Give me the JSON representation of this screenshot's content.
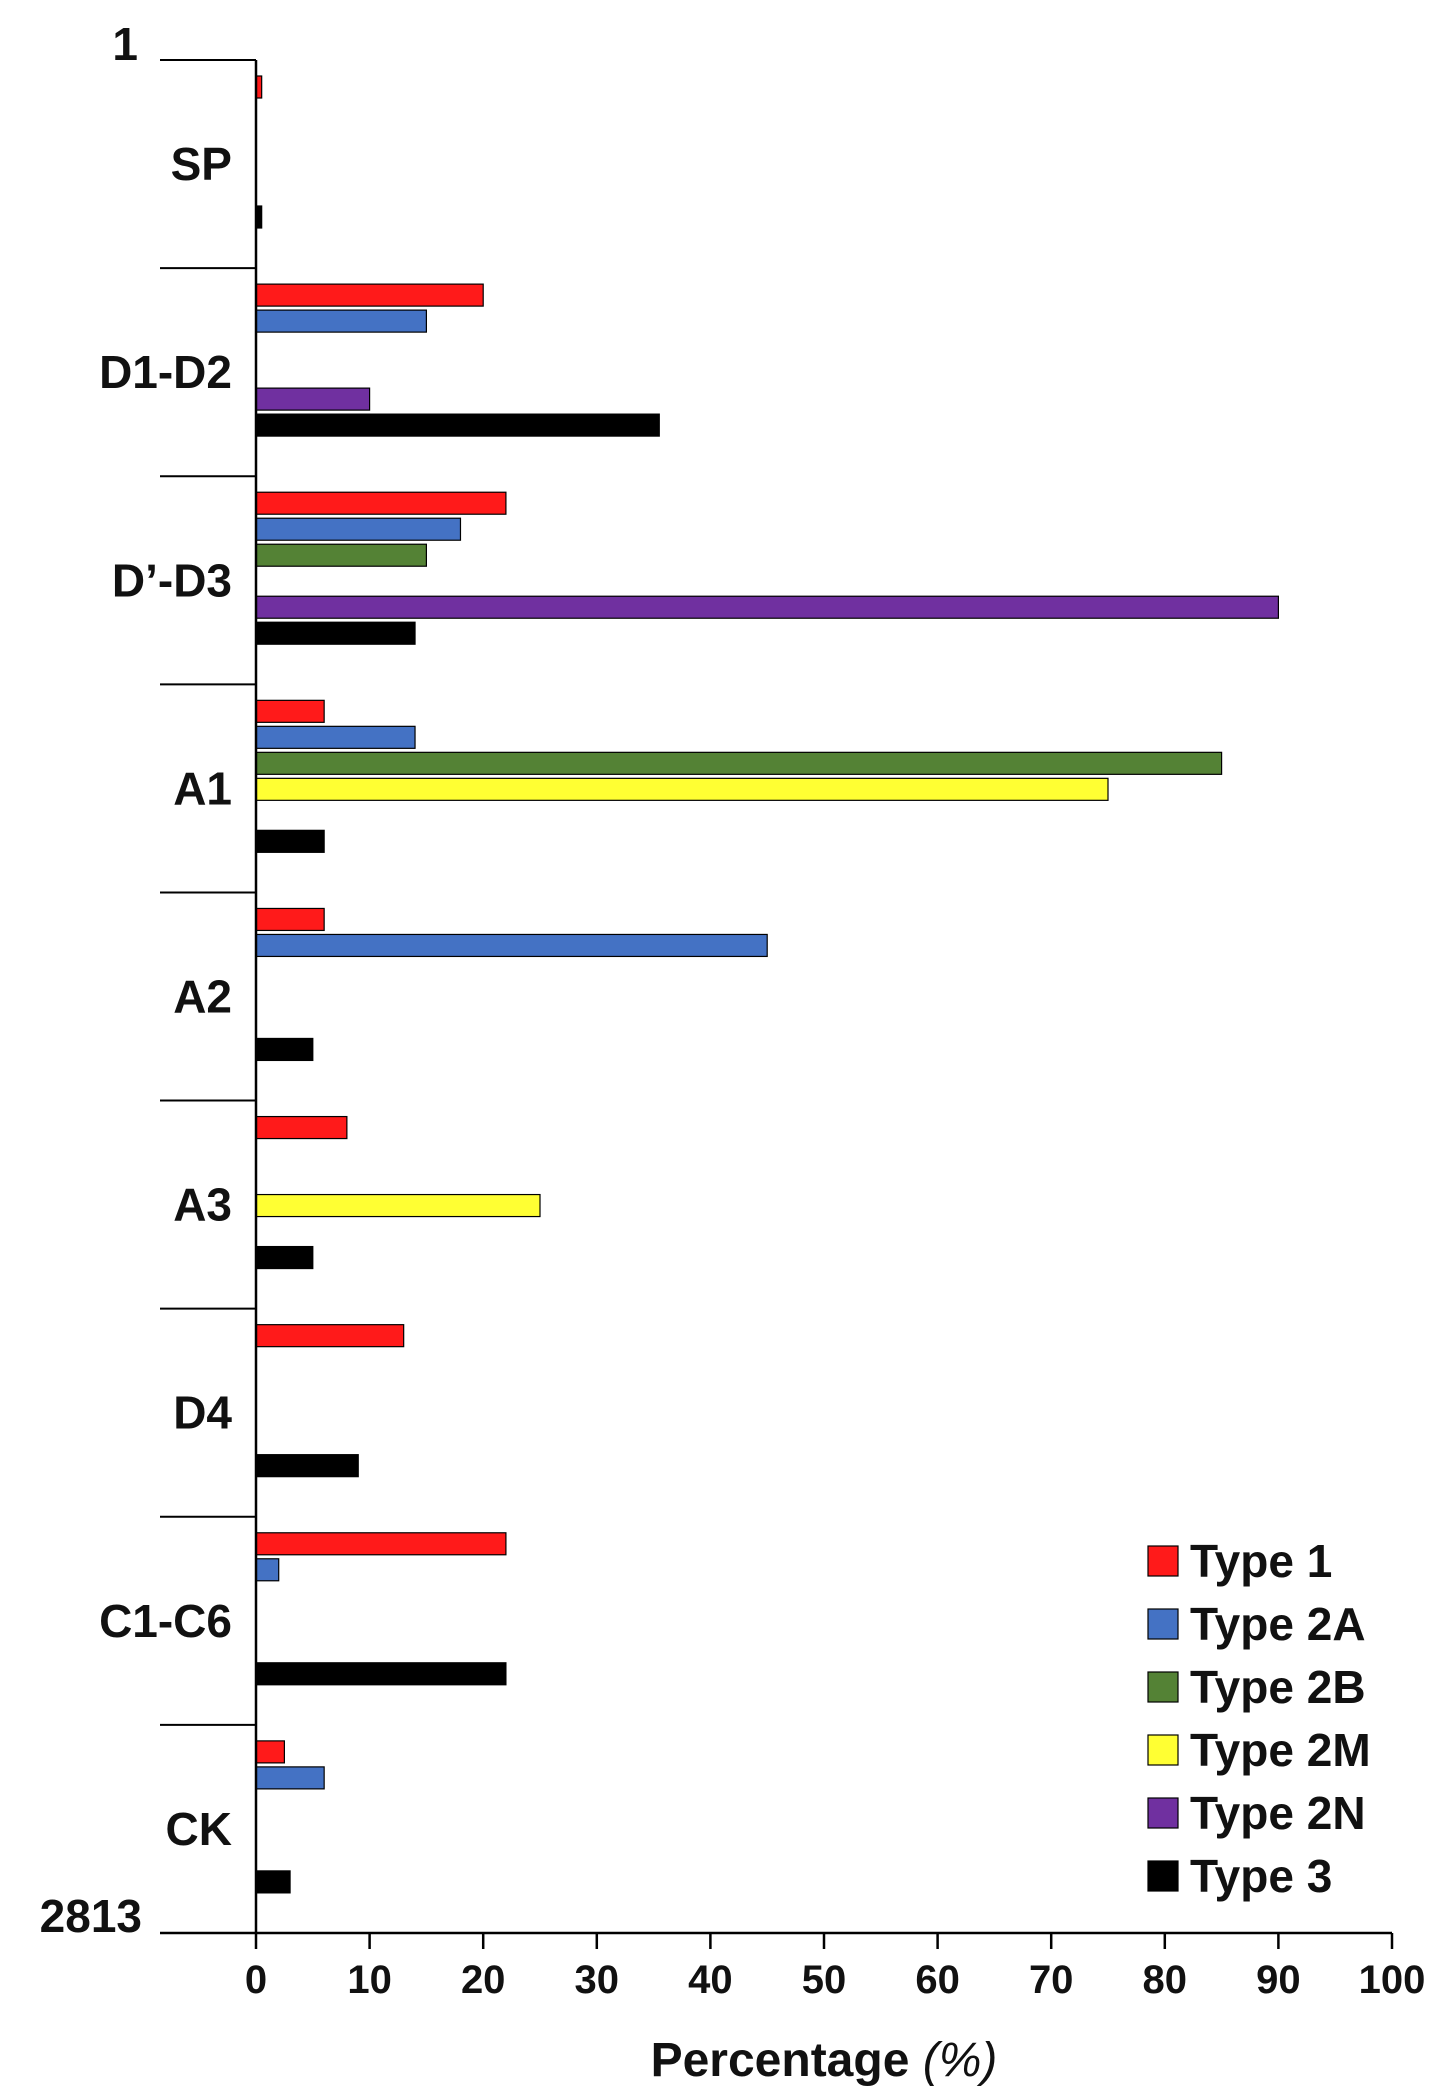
{
  "chart_data": {
    "type": "bar",
    "orientation": "horizontal",
    "title": "",
    "xlabel": "Percentage",
    "xlabel_unit": "(%)",
    "ylabel": "",
    "xlim": [
      0,
      100
    ],
    "xticks": [
      0,
      10,
      20,
      30,
      40,
      50,
      60,
      70,
      80,
      90,
      100
    ],
    "domain_start": "1",
    "domain_end": "2813",
    "categories": [
      "SP",
      "D1-D2",
      "D’-D3",
      "A1",
      "A2",
      "A3",
      "D4",
      "C1-C6",
      "CK"
    ],
    "series": [
      {
        "name": "Type 1",
        "color": "#ff1a1a",
        "values": [
          0.5,
          20,
          22,
          6,
          6,
          8,
          13,
          22,
          2.5
        ]
      },
      {
        "name": "Type 2A",
        "color": "#4472c4",
        "values": [
          0,
          15,
          18,
          14,
          45,
          0,
          0,
          2,
          6
        ]
      },
      {
        "name": "Type 2B",
        "color": "#548235",
        "values": [
          0,
          0,
          15,
          85,
          0,
          0,
          0,
          0,
          0
        ]
      },
      {
        "name": "Type 2M",
        "color": "#ffff33",
        "values": [
          0,
          0,
          0,
          75,
          0,
          25,
          0,
          0,
          0
        ]
      },
      {
        "name": "Type 2N",
        "color": "#7030a0",
        "values": [
          0,
          10,
          90,
          0,
          0,
          0,
          0,
          0,
          0
        ]
      },
      {
        "name": "Type 3",
        "color": "#000000",
        "values": [
          0.5,
          35.5,
          14,
          6,
          5,
          5,
          9,
          22,
          3
        ]
      }
    ],
    "legend_position": "bottom-right",
    "grid": false
  }
}
